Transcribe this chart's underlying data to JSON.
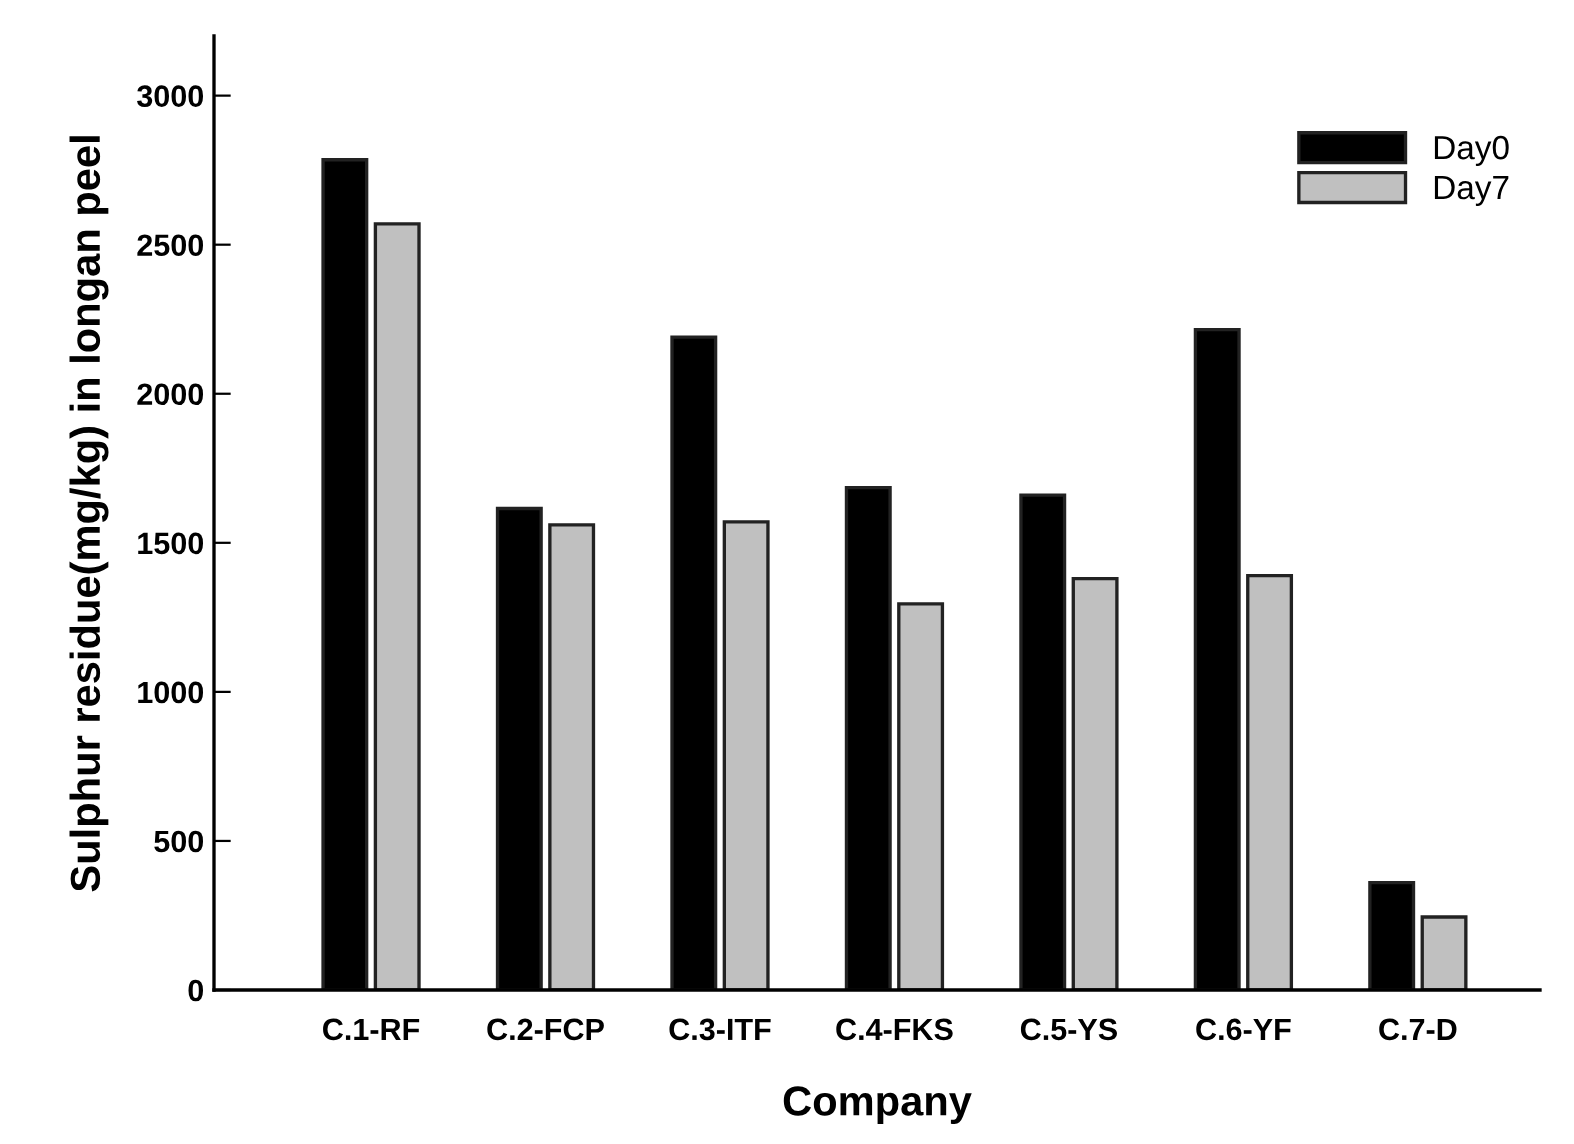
{
  "chart_data": {
    "type": "bar",
    "xlabel": "Company",
    "ylabel": "Sulphur residue(mg/kg) in longan peel",
    "categories": [
      "C.1-RF",
      "C.2-FCP",
      "C.3-ITF",
      "C.4-FKS",
      "C.5-YS",
      "C.6-YF",
      "C.7-D"
    ],
    "series": [
      {
        "name": "Day0",
        "color": "#000000",
        "values": [
          2785,
          1615,
          2190,
          1685,
          1660,
          2215,
          360
        ]
      },
      {
        "name": "Day7",
        "color": "#c0c0c0",
        "values": [
          2570,
          1560,
          1570,
          1295,
          1380,
          1390,
          245
        ]
      }
    ],
    "ylim": [
      0,
      3200
    ],
    "yticks": [
      0,
      500,
      1000,
      1500,
      2000,
      2500,
      3000
    ],
    "grid": false,
    "legend": "top right"
  }
}
